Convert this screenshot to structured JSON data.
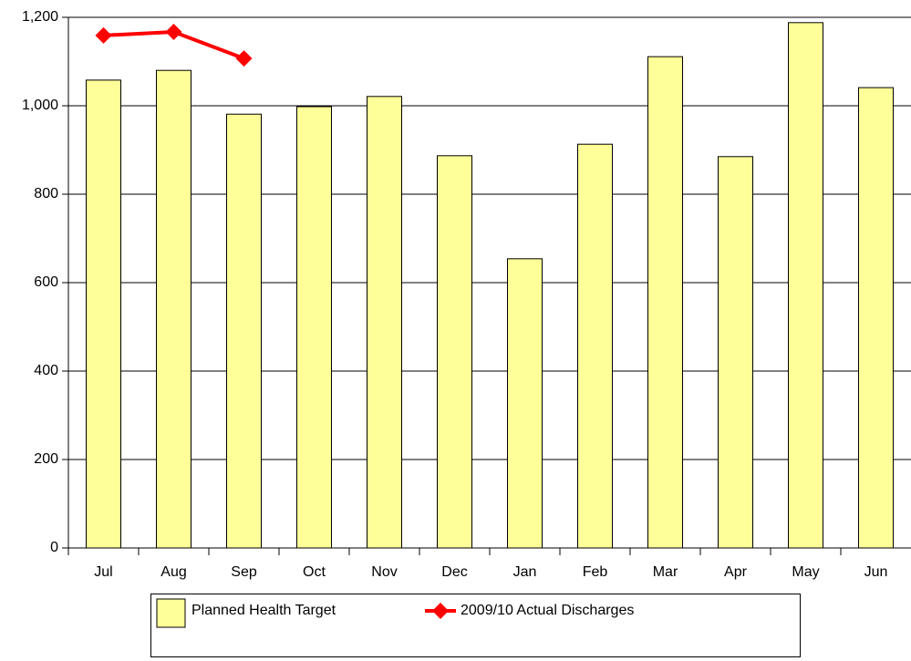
{
  "chart_data": {
    "type": "bar",
    "categories": [
      "Jul",
      "Aug",
      "Sep",
      "Oct",
      "Nov",
      "Dec",
      "Jan",
      "Feb",
      "Mar",
      "Apr",
      "May",
      "Jun"
    ],
    "series": [
      {
        "name": "Planned Health Target",
        "type": "bar",
        "color": "#ffff99",
        "values": [
          1058,
          1080,
          981,
          998,
          1021,
          887,
          654,
          913,
          1111,
          885,
          1188,
          1041
        ]
      },
      {
        "name": "2009/10 Actual Discharges",
        "type": "line",
        "color": "#ff0000",
        "values": [
          1159,
          1167,
          1107,
          null,
          null,
          null,
          null,
          null,
          null,
          null,
          null,
          null
        ]
      }
    ],
    "ylim": [
      0,
      1200
    ],
    "yticks": [
      0,
      200,
      400,
      600,
      800,
      {
        "value": 1000,
        "label": "1,000"
      },
      {
        "value": 1200,
        "label": "1,200"
      }
    ],
    "grid": true,
    "legend": "bottom"
  }
}
